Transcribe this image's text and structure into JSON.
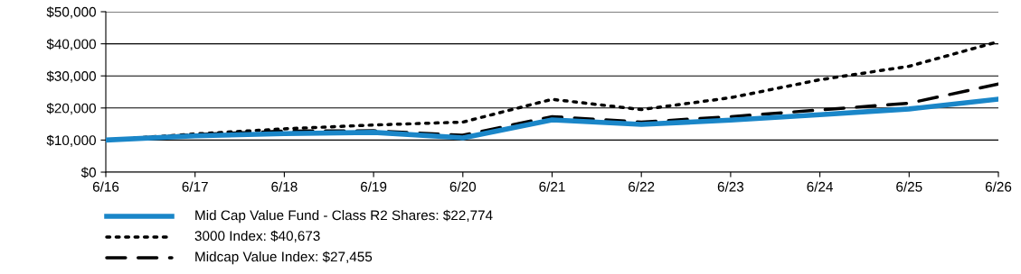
{
  "chart_data": {
    "type": "line",
    "categories": [
      "6/16",
      "6/17",
      "6/18",
      "6/19",
      "6/20",
      "6/21",
      "6/22",
      "6/23",
      "6/24",
      "6/25",
      "6/26"
    ],
    "series": [
      {
        "name": "Mid Cap Value Fund - Class R2 Shares: $22,774",
        "color": "#1a86c8",
        "line_style": "solid",
        "values": [
          10000,
          11300,
          12000,
          12400,
          10700,
          16300,
          14900,
          16200,
          17900,
          19700,
          22774
        ]
      },
      {
        "name": "3000 Index: $40,673",
        "color": "#000000",
        "line_style": "dotted",
        "values": [
          10000,
          11900,
          13500,
          14700,
          15600,
          22700,
          19500,
          23200,
          28800,
          33000,
          40673
        ]
      },
      {
        "name": "Midcap Value Index: $27,455",
        "color": "#000000",
        "line_style": "dashed",
        "values": [
          10000,
          11700,
          12800,
          12900,
          11500,
          17300,
          15600,
          17300,
          19400,
          21500,
          27455
        ]
      }
    ],
    "ylim": [
      0,
      50000
    ],
    "yticks": [
      {
        "value": 0,
        "label": "$0"
      },
      {
        "value": 10000,
        "label": "$10,000"
      },
      {
        "value": 20000,
        "label": "$20,000"
      },
      {
        "value": 30000,
        "label": "$30,000"
      },
      {
        "value": 40000,
        "label": "$40,000"
      },
      {
        "value": 50000,
        "label": "$50,000"
      }
    ],
    "grid": "y",
    "legend": "bottom",
    "marker": "none"
  }
}
